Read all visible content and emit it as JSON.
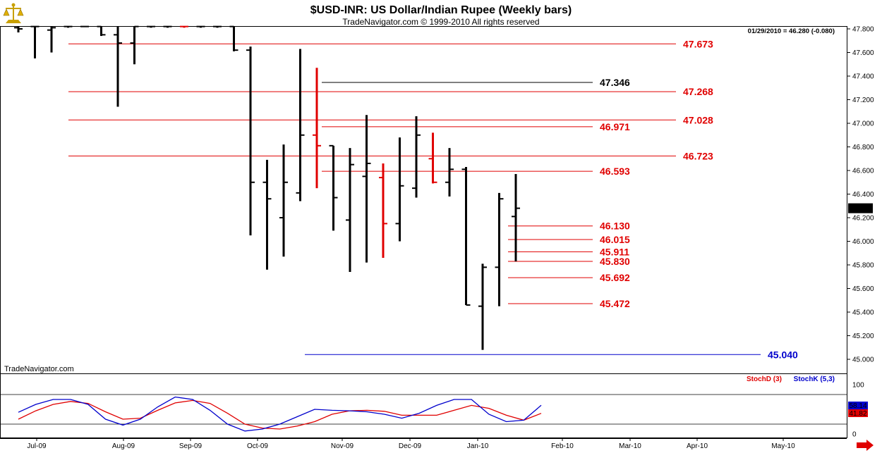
{
  "header": {
    "title": "$USD-INR:  US Dollar/Indian Rupee  (Weekly bars)",
    "copyright": "TradeNavigator.com © 1999-2010 All rights reserved",
    "last_quote": "01/29/2010 = 46.280 (-0.080)",
    "watermark": "TradeNavigator.com"
  },
  "colors": {
    "bar_black": "#000000",
    "bar_red": "#e00000",
    "level_red": "#e00000",
    "level_black": "#000000",
    "level_blue": "#0000cc",
    "stoch_d": "#e00000",
    "stoch_k": "#0000cc",
    "logo": "#c8a000",
    "nav_arrow": "#e00000"
  },
  "chart_data": [
    {
      "type": "ohlc",
      "ylim": [
        45.0,
        47.8
      ],
      "y_ticks": [
        "47.800",
        "47.600",
        "47.400",
        "47.200",
        "47.000",
        "46.800",
        "46.600",
        "46.400",
        "46.200",
        "46.000",
        "45.800",
        "45.600",
        "45.400",
        "45.200",
        "45.000"
      ],
      "x_ticks": [
        "Jul-09",
        "Aug-09",
        "Sep-09",
        "Oct-09",
        "Nov-09",
        "Dec-09",
        "Jan-10",
        "Feb-10",
        "Mar-10",
        "Apr-10",
        "May-10"
      ],
      "last_price_label": "46.280",
      "bars": [
        {
          "o": 47.81,
          "h": 47.85,
          "l": 47.77,
          "c": 47.8,
          "color": "black"
        },
        {
          "o": 47.82,
          "h": 47.85,
          "l": 47.55,
          "c": 47.82,
          "color": "black"
        },
        {
          "o": 47.79,
          "h": 47.85,
          "l": 47.6,
          "c": 47.81,
          "color": "black"
        },
        {
          "o": 47.82,
          "h": 47.83,
          "l": 47.81,
          "c": 47.82,
          "color": "black"
        },
        {
          "o": 47.82,
          "h": 47.82,
          "l": 47.82,
          "c": 47.82,
          "color": "black"
        },
        {
          "o": 47.82,
          "h": 47.85,
          "l": 47.74,
          "c": 47.75,
          "color": "black"
        },
        {
          "o": 47.75,
          "h": 47.85,
          "l": 47.14,
          "c": 47.68,
          "color": "black"
        },
        {
          "o": 47.68,
          "h": 47.85,
          "l": 47.5,
          "c": 47.82,
          "color": "black"
        },
        {
          "o": 47.82,
          "h": 47.83,
          "l": 47.81,
          "c": 47.82,
          "color": "black"
        },
        {
          "o": 47.82,
          "h": 47.83,
          "l": 47.81,
          "c": 47.82,
          "color": "black"
        },
        {
          "o": 47.82,
          "h": 47.83,
          "l": 47.81,
          "c": 47.82,
          "color": "red"
        },
        {
          "o": 47.82,
          "h": 47.83,
          "l": 47.81,
          "c": 47.82,
          "color": "black"
        },
        {
          "o": 47.82,
          "h": 47.83,
          "l": 47.81,
          "c": 47.82,
          "color": "black"
        },
        {
          "o": 47.82,
          "h": 47.85,
          "l": 47.61,
          "c": 47.62,
          "color": "black"
        },
        {
          "o": 47.62,
          "h": 47.65,
          "l": 46.05,
          "c": 46.5,
          "color": "black"
        },
        {
          "o": 46.5,
          "h": 46.69,
          "l": 45.76,
          "c": 46.36,
          "color": "black"
        },
        {
          "o": 46.2,
          "h": 46.82,
          "l": 45.87,
          "c": 46.5,
          "color": "black"
        },
        {
          "o": 46.41,
          "h": 47.63,
          "l": 46.34,
          "c": 46.9,
          "color": "black"
        },
        {
          "o": 46.9,
          "h": 47.47,
          "l": 46.45,
          "c": 46.81,
          "color": "red"
        },
        {
          "o": 46.81,
          "h": 46.81,
          "l": 46.09,
          "c": 46.37,
          "color": "black"
        },
        {
          "o": 46.18,
          "h": 46.79,
          "l": 45.74,
          "c": 46.65,
          "color": "black"
        },
        {
          "o": 46.55,
          "h": 47.07,
          "l": 45.82,
          "c": 46.66,
          "color": "black"
        },
        {
          "o": 46.54,
          "h": 46.66,
          "l": 45.86,
          "c": 46.15,
          "color": "red"
        },
        {
          "o": 46.15,
          "h": 46.88,
          "l": 46.0,
          "c": 46.47,
          "color": "black"
        },
        {
          "o": 46.45,
          "h": 47.06,
          "l": 46.37,
          "c": 46.9,
          "color": "black"
        },
        {
          "o": 46.7,
          "h": 46.92,
          "l": 46.49,
          "c": 46.5,
          "color": "red"
        },
        {
          "o": 46.5,
          "h": 46.79,
          "l": 46.38,
          "c": 46.61,
          "color": "black"
        },
        {
          "o": 46.61,
          "h": 46.63,
          "l": 45.46,
          "c": 45.46,
          "color": "black"
        },
        {
          "o": 45.45,
          "h": 45.81,
          "l": 45.08,
          "c": 45.78,
          "color": "black"
        },
        {
          "o": 45.78,
          "h": 46.41,
          "l": 45.45,
          "c": 46.36,
          "color": "black"
        },
        {
          "o": 46.21,
          "h": 46.57,
          "l": 45.83,
          "c": 46.28,
          "color": "black"
        }
      ],
      "levels": [
        {
          "value": 47.673,
          "label": "47.673",
          "color": "red"
        },
        {
          "value": 47.346,
          "label": "47.346",
          "color": "black"
        },
        {
          "value": 47.268,
          "label": "47.268",
          "color": "red"
        },
        {
          "value": 47.028,
          "label": "47.028",
          "color": "red"
        },
        {
          "value": 46.971,
          "label": "46.971",
          "color": "red"
        },
        {
          "value": 46.723,
          "label": "46.723",
          "color": "red"
        },
        {
          "value": 46.593,
          "label": "46.593",
          "color": "red"
        },
        {
          "value": 46.13,
          "label": "46.130",
          "color": "red"
        },
        {
          "value": 46.015,
          "label": "46.015",
          "color": "red"
        },
        {
          "value": 45.911,
          "label": "45.911",
          "color": "red"
        },
        {
          "value": 45.83,
          "label": "45.830",
          "color": "red"
        },
        {
          "value": 45.692,
          "label": "45.692",
          "color": "red"
        },
        {
          "value": 45.472,
          "label": "45.472",
          "color": "red"
        },
        {
          "value": 45.04,
          "label": "45.040",
          "color": "blue"
        }
      ]
    },
    {
      "type": "line",
      "ylim": [
        0,
        100
      ],
      "y_ticks": [
        "100",
        "0"
      ],
      "grid_levels": [
        80,
        20
      ],
      "legend": [
        "StochD (3)",
        "StochK (5,3)"
      ],
      "legend_placement": "top-right",
      "series": [
        {
          "name": "StochD (3)",
          "color": "red",
          "values": [
            30,
            47,
            60,
            66,
            62,
            45,
            30,
            32,
            48,
            63,
            68,
            62,
            42,
            20,
            12,
            10,
            16,
            25,
            40,
            47,
            48,
            46,
            38,
            38,
            38,
            48,
            58,
            52,
            38,
            28,
            41.82
          ],
          "last_label": "41.82"
        },
        {
          "name": "StochK (5,3)",
          "color": "blue",
          "values": [
            44,
            60,
            70,
            70,
            60,
            30,
            18,
            30,
            55,
            75,
            70,
            48,
            20,
            6,
            10,
            20,
            35,
            50,
            48,
            47,
            45,
            40,
            32,
            42,
            58,
            70,
            70,
            40,
            25,
            28,
            58.14
          ],
          "last_label": "58.14"
        }
      ]
    }
  ]
}
